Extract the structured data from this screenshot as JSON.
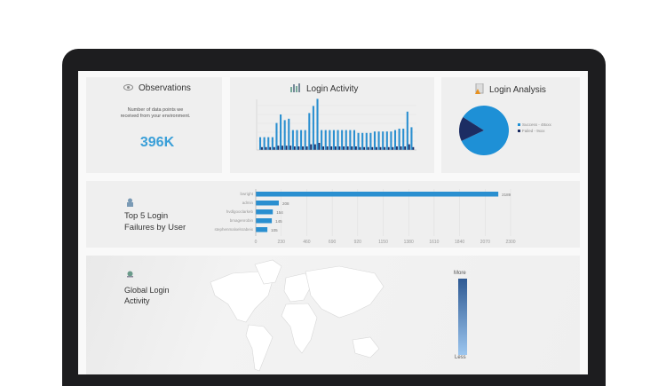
{
  "observations": {
    "title": "Observations",
    "icon": "eye-icon",
    "description": "Number of data points we received from your environment.",
    "value": "396K"
  },
  "login_activity": {
    "title": "Login Activity",
    "icon": "bar-chart-icon"
  },
  "login_analysis": {
    "title": "Login Analysis",
    "icon": "report-icon",
    "legend": [
      {
        "label": "Success - 48xxx",
        "color": "#1e90d6"
      },
      {
        "label": "Failed - 9xxx",
        "color": "#1c2d63"
      }
    ]
  },
  "top_failures": {
    "title_line1": "Top 5 Login",
    "title_line2": "Failures by User",
    "icon": "user-lock-icon"
  },
  "global": {
    "title_line1": "Global Login",
    "title_line2": "Activity",
    "icon": "globe-icon",
    "scale_more": "More",
    "scale_less": "Less"
  },
  "chart_data": [
    {
      "type": "bar",
      "title": "Login Activity",
      "series": [
        {
          "values": [
            18,
            18,
            18,
            18,
            38,
            50,
            42,
            44,
            28,
            28,
            28,
            28,
            52,
            62,
            72,
            28,
            28,
            28,
            28,
            28,
            28,
            28,
            28,
            28,
            24,
            24,
            24,
            24,
            26,
            26,
            26,
            26,
            26,
            28,
            30,
            30,
            54,
            32
          ]
        },
        {
          "values": [
            4,
            4,
            4,
            4,
            6,
            6,
            6,
            6,
            5,
            5,
            5,
            5,
            8,
            8,
            10,
            5,
            5,
            5,
            5,
            5,
            5,
            5,
            5,
            5,
            4,
            4,
            4,
            4,
            4,
            4,
            4,
            4,
            4,
            5,
            5,
            5,
            8,
            4
          ]
        }
      ],
      "colors": [
        "#2a8fd0",
        "#1c2d63"
      ]
    },
    {
      "type": "pie",
      "title": "Login Analysis",
      "values": [
        84,
        16
      ],
      "colors": [
        "#1e90d6",
        "#1c2d63"
      ]
    },
    {
      "type": "bar",
      "orientation": "horizontal",
      "title": "Top 5 Login Failures by User",
      "categories": [
        "bwright",
        "admin",
        "hvdlgooclarkeb",
        "bmagenrobin",
        "stephenmalxelsrabeix"
      ],
      "values": [
        2189,
        208,
        154,
        145,
        105
      ],
      "xticks": [
        "0",
        "230",
        "460",
        "690",
        "920",
        "1150",
        "1380",
        "1610",
        "1840",
        "2070",
        "2300"
      ],
      "xlim": [
        0,
        2300
      ],
      "grid": true,
      "color": "#2a8fd0"
    }
  ]
}
